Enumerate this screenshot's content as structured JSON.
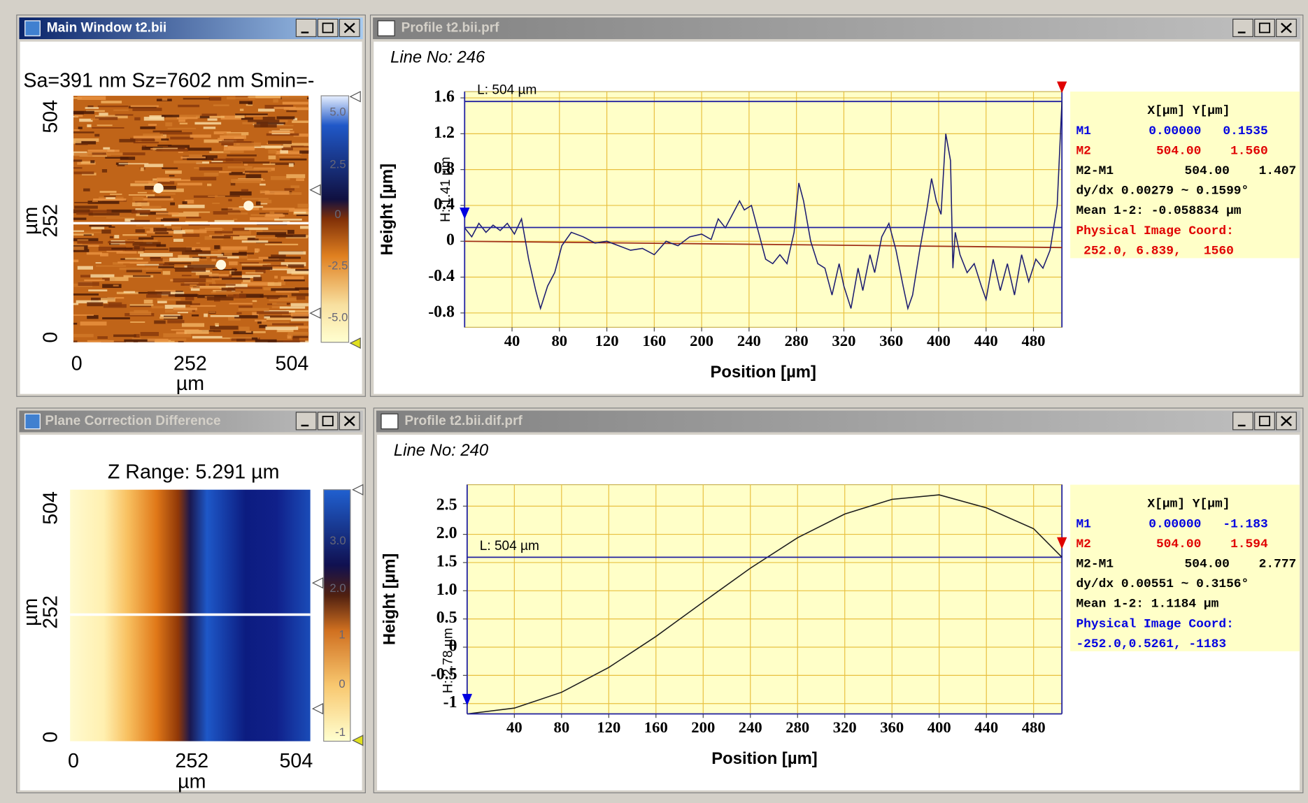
{
  "windows": [
    {
      "title": "Main Window t2.bii",
      "stats": "Sa=391 nm  Sz=7602 nm  Smin=-",
      "y_labels": [
        "504",
        "252",
        "0"
      ],
      "y_unit": "µm",
      "x_labels": [
        "0",
        "252",
        "504"
      ],
      "x_unit": "µm",
      "colorbar_labels": [
        "5.0",
        "2.5",
        "0",
        "-2.5",
        "-5.0"
      ]
    },
    {
      "title": "Profile t2.bii.prf",
      "line_no": "Line No: 246"
    },
    {
      "title": "Plane Correction Difference",
      "stats": "Z Range:  5.291 µm",
      "y_labels": [
        "504",
        "252",
        "0"
      ],
      "y_unit": "µm",
      "x_labels": [
        "0",
        "252",
        "504"
      ],
      "x_unit": "µm",
      "colorbar_labels": [
        "3.0",
        "2.0",
        "1",
        "0",
        "-1"
      ]
    },
    {
      "title": "Profile t2.bii.dif.prf",
      "line_no": "Line No: 240"
    }
  ],
  "chart_data": [
    {
      "type": "line",
      "xlabel": "Position [µm]",
      "ylabel": "Height [µm]",
      "length_label": "L:  504 µm",
      "height_label": "H: 1.41 µm",
      "xlim": [
        0,
        504
      ],
      "ylim": [
        -0.96,
        1.67
      ],
      "xticks": [
        40,
        80,
        120,
        160,
        200,
        240,
        280,
        320,
        360,
        400,
        440,
        480
      ],
      "yticks": [
        1.6,
        1.2,
        0.8,
        0.4,
        0,
        -0.4,
        -0.8
      ],
      "grid": true,
      "x": [
        0,
        6,
        12,
        18,
        24,
        30,
        36,
        42,
        48,
        54,
        60,
        64,
        70,
        76,
        82,
        90,
        100,
        110,
        120,
        130,
        140,
        150,
        160,
        170,
        180,
        190,
        200,
        208,
        214,
        220,
        226,
        232,
        236,
        242,
        248,
        254,
        260,
        266,
        272,
        278,
        282,
        286,
        292,
        298,
        304,
        310,
        316,
        320,
        326,
        332,
        336,
        342,
        346,
        352,
        358,
        364,
        370,
        374,
        378,
        384,
        390,
        394,
        398,
        402,
        406,
        410,
        412,
        414,
        418,
        424,
        430,
        436,
        440,
        446,
        452,
        458,
        464,
        470,
        476,
        482,
        488,
        494,
        500,
        504
      ],
      "series": [
        {
          "color": "#1c1c70",
          "values": [
            0.15,
            0.05,
            0.2,
            0.1,
            0.18,
            0.12,
            0.2,
            0.08,
            0.25,
            -0.2,
            -0.55,
            -0.75,
            -0.5,
            -0.35,
            -0.05,
            0.1,
            0.05,
            -0.02,
            0,
            -0.05,
            -0.1,
            -0.08,
            -0.15,
            0,
            -0.05,
            0.05,
            0.08,
            0.02,
            0.25,
            0.15,
            0.3,
            0.45,
            0.35,
            0.4,
            0.1,
            -0.2,
            -0.25,
            -0.15,
            -0.25,
            0.1,
            0.65,
            0.45,
            0,
            -0.25,
            -0.3,
            -0.6,
            -0.25,
            -0.5,
            -0.75,
            -0.3,
            -0.55,
            -0.15,
            -0.35,
            0.05,
            0.2,
            -0.1,
            -0.5,
            -0.75,
            -0.6,
            -0.1,
            0.35,
            0.7,
            0.45,
            0.3,
            1.2,
            0.9,
            -0.3,
            0.1,
            -0.15,
            -0.35,
            -0.25,
            -0.5,
            -0.65,
            -0.2,
            -0.55,
            -0.25,
            -0.6,
            -0.15,
            -0.45,
            -0.2,
            -0.3,
            -0.1,
            0.4,
            1.56
          ]
        }
      ],
      "trend": {
        "x": [
          0,
          504
        ],
        "values": [
          0,
          -0.07
        ],
        "color": "#a03018"
      },
      "readout": {
        "header": "X[µm]  Y[µm]",
        "markers": [
          {
            "name": "M1",
            "x": 0,
            "x_label": "0.00000",
            "y": 0.1535,
            "color": "#0000e0"
          },
          {
            "name": "M2",
            "x": 504,
            "x_label": "504.00",
            "y": 1.56,
            "y_label": "1.560",
            "color": "#e00000"
          }
        ],
        "diff": [
          "M2-M1",
          "504.00",
          "1.407"
        ],
        "slope": "dy/dx 0.00279 ~ 0.1599°",
        "mean": "Mean 1-2: -0.058834 µm",
        "coord_title": "Physical Image Coord:",
        "coord": " 252.0, 6.839,   1560",
        "coord_color": "#e00000"
      }
    },
    {
      "type": "line",
      "xlabel": "Position [µm]",
      "ylabel": "Height [µm]",
      "length_label": "L:  504 µm",
      "height_label": "H: 2.78 µm",
      "xlim": [
        0,
        504
      ],
      "ylim": [
        -1.18,
        2.88
      ],
      "xticks": [
        40,
        80,
        120,
        160,
        200,
        240,
        280,
        320,
        360,
        400,
        440,
        480
      ],
      "yticks": [
        2.5,
        {
          "value": 2,
          "label": "2.0"
        },
        1.5,
        {
          "value": 1,
          "label": "1.0"
        },
        0.5,
        0,
        -0.5,
        -1
      ],
      "grid": true,
      "x": [
        0,
        40,
        80,
        120,
        160,
        200,
        240,
        280,
        320,
        360,
        400,
        440,
        480,
        504
      ],
      "series": [
        {
          "color": "#1c1c1c",
          "values": [
            -1.183,
            -1.08,
            -0.8,
            -0.36,
            0.19,
            0.8,
            1.4,
            1.94,
            2.36,
            2.62,
            2.7,
            2.47,
            2.1,
            1.594
          ]
        }
      ],
      "readout": {
        "header": "X[µm]  Y[µm]",
        "markers": [
          {
            "name": "M1",
            "x": 0,
            "x_label": "0.00000",
            "y": -1.183,
            "color": "#0000e0"
          },
          {
            "name": "M2",
            "x": 504,
            "x_label": "504.00",
            "y": 1.594,
            "color": "#e00000"
          }
        ],
        "diff": [
          "M2-M1",
          "504.00",
          "2.777"
        ],
        "slope": "dy/dx 0.00551 ~ 0.3156°",
        "mean": "Mean 1-2:   1.1184 µm",
        "coord_title": "Physical Image Coord:",
        "coord": "-252.0,0.5261, -1183",
        "coord_color": "#0000e0"
      }
    }
  ]
}
